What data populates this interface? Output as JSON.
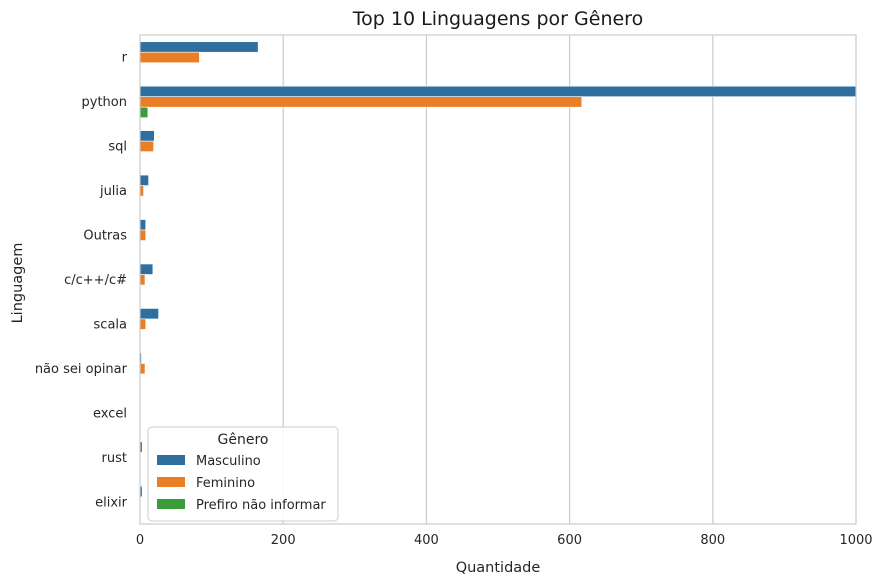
{
  "chart_data": {
    "type": "bar",
    "orientation": "horizontal",
    "title": "Top 10 Linguagens por Gênero",
    "xlabel": "Quantidade",
    "ylabel": "Linguagem",
    "xlim": [
      0,
      1000
    ],
    "xticks": [
      0,
      200,
      400,
      600,
      800,
      1000
    ],
    "categories": [
      "r",
      "python",
      "sql",
      "julia",
      "Outras",
      "c/c++/c#",
      "scala",
      "não sei opinar",
      "excel",
      "rust",
      "elixir"
    ],
    "series": [
      {
        "name": "Masculino",
        "color": "#2f6f9f",
        "values": [
          165,
          1000,
          20,
          12,
          8,
          18,
          26,
          2,
          1,
          3,
          3
        ]
      },
      {
        "name": "Feminino",
        "color": "#e97e25",
        "values": [
          83,
          617,
          19,
          5,
          8,
          7,
          8,
          7,
          0,
          0,
          0
        ]
      },
      {
        "name": "Prefiro não informar",
        "color": "#3a9d3a",
        "values": [
          0,
          11,
          0,
          0,
          0,
          0,
          0,
          0,
          0,
          0,
          0
        ]
      }
    ],
    "grid": "x",
    "legend": {
      "title": "Gênero",
      "position": "lower-left"
    }
  }
}
